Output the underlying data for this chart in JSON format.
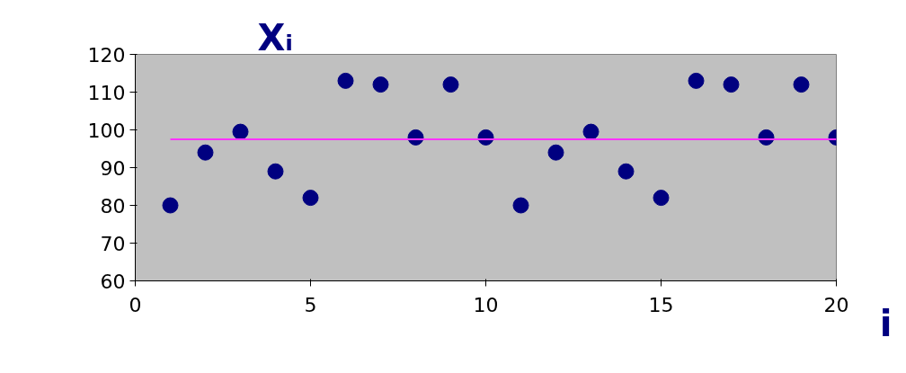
{
  "chart_data": {
    "type": "scatter",
    "xlabel": "i",
    "ylabel": "Xᵢ",
    "x": [
      1,
      2,
      3,
      4,
      5,
      6,
      7,
      8,
      9,
      10,
      11,
      12,
      13,
      14,
      15,
      16,
      17,
      18,
      19,
      20
    ],
    "series": [
      {
        "color": "#000080",
        "marker": "circle",
        "values": [
          80,
          94,
          99.5,
          89,
          82,
          113,
          112,
          98,
          112,
          98,
          80,
          94,
          99.5,
          89,
          82,
          113,
          112,
          98,
          112,
          98
        ]
      },
      {
        "type": "line",
        "color": "#ff33ff",
        "marker": "none",
        "x": [
          1,
          20
        ],
        "values": [
          97.5,
          97.5
        ]
      }
    ],
    "xlim": [
      0,
      20
    ],
    "xticks": [
      0,
      5,
      10,
      15,
      20
    ],
    "ylim": [
      60,
      120
    ],
    "yticks": [
      60,
      70,
      80,
      90,
      100,
      110,
      120
    ],
    "grid": false
  }
}
